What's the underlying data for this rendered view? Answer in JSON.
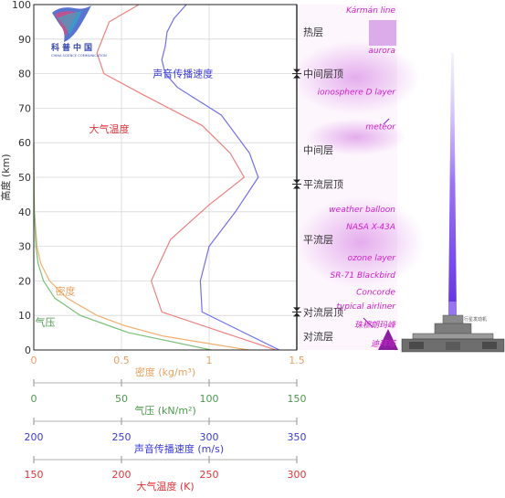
{
  "chart_data": {
    "type": "line",
    "y_axis": {
      "label": "高度 (km)",
      "ticks": [
        "0",
        "10",
        "20",
        "30",
        "40",
        "50",
        "60",
        "70",
        "80",
        "90",
        "100"
      ],
      "ylim": [
        0,
        100
      ]
    },
    "x_axes": [
      {
        "key": "density",
        "label": "密度 (kg/m³)",
        "ticks": [
          "0",
          "0.5",
          "1",
          "1.5"
        ],
        "xlim": [
          0,
          1.5
        ],
        "color": "#E8A060"
      },
      {
        "key": "pressure",
        "label": "气压 (kN/m²)",
        "ticks": [
          "0",
          "50",
          "100",
          "150"
        ],
        "xlim": [
          0,
          150
        ],
        "color": "#4C9A4C"
      },
      {
        "key": "sound_speed",
        "label": "声音传播速度 (m/s)",
        "ticks": [
          "200",
          "250",
          "300",
          "350"
        ],
        "xlim": [
          200,
          350
        ],
        "color": "#3A3AD8"
      },
      {
        "key": "temperature",
        "label": "大气温度 (K)",
        "ticks": [
          "150",
          "200",
          "250",
          "300"
        ],
        "xlim": [
          150,
          300
        ],
        "color": "#E0353A"
      }
    ],
    "series": [
      {
        "name": "大气温度",
        "axis": "temperature",
        "color": "#F08080",
        "points": [
          [
            288,
            0
          ],
          [
            223,
            11
          ],
          [
            217,
            20
          ],
          [
            228,
            32
          ],
          [
            250,
            42
          ],
          [
            270,
            50
          ],
          [
            262,
            57
          ],
          [
            246,
            65
          ],
          [
            212,
            74
          ],
          [
            190,
            80
          ],
          [
            186,
            86
          ],
          [
            193,
            95
          ],
          [
            210,
            100
          ]
        ]
      },
      {
        "name": "声音传播速度",
        "axis": "sound_speed",
        "color": "#7070F0",
        "points": [
          [
            340,
            0
          ],
          [
            296,
            11
          ],
          [
            295,
            20
          ],
          [
            300,
            30
          ],
          [
            315,
            40
          ],
          [
            328,
            50
          ],
          [
            323,
            57
          ],
          [
            307,
            68
          ],
          [
            282,
            76
          ],
          [
            275,
            80
          ],
          [
            273,
            84
          ],
          [
            275,
            88
          ],
          [
            276,
            92
          ],
          [
            280,
            96
          ],
          [
            287,
            100
          ]
        ]
      },
      {
        "name": "密度",
        "axis": "density",
        "color": "#F0B070",
        "points": [
          [
            1.225,
            0
          ],
          [
            0.74,
            4
          ],
          [
            0.52,
            7
          ],
          [
            0.36,
            10
          ],
          [
            0.19,
            15
          ],
          [
            0.09,
            20
          ],
          [
            0.04,
            25
          ],
          [
            0.018,
            30
          ],
          [
            0.004,
            40
          ],
          [
            0.001,
            50
          ],
          [
            0,
            60
          ]
        ]
      },
      {
        "name": "气压",
        "axis": "pressure",
        "color": "#7ABF7A",
        "points": [
          [
            101.3,
            0
          ],
          [
            54,
            5
          ],
          [
            26.5,
            10
          ],
          [
            12,
            15
          ],
          [
            5.5,
            20
          ],
          [
            2.5,
            25
          ],
          [
            1.2,
            30
          ],
          [
            0.3,
            40
          ],
          [
            0.08,
            50
          ],
          [
            0,
            60
          ]
        ]
      }
    ],
    "layer_annotations": [
      {
        "label": "热层",
        "altitude": 92
      },
      {
        "label": "中间层顶",
        "altitude": 80,
        "boundary": true
      },
      {
        "label": "中间层",
        "altitude": 58
      },
      {
        "label": "平流层顶",
        "altitude": 48,
        "boundary": true
      },
      {
        "label": "平流层",
        "altitude": 32
      },
      {
        "label": "对流层顶",
        "altitude": 11,
        "boundary": true
      },
      {
        "label": "对流层",
        "altitude": 4
      }
    ],
    "altitude_markers": [
      {
        "label": "Kármán line",
        "altitude": 100
      },
      {
        "label": "aurora",
        "altitude": 87
      },
      {
        "label": "ionosphere D layer",
        "altitude": 75
      },
      {
        "label": "meteor",
        "altitude": 65
      },
      {
        "label": "weather balloon",
        "altitude": 41
      },
      {
        "label": "NASA X-43A",
        "altitude": 36
      },
      {
        "label": "ozone layer",
        "altitude": 27
      },
      {
        "label": "SR-71 Blackbird",
        "altitude": 22
      },
      {
        "label": "Concorde",
        "altitude": 17
      },
      {
        "label": "typical airliner",
        "altitude": 13
      },
      {
        "label": "珠穆朗玛峰",
        "altitude": 7.5
      },
      {
        "label": "迪拜塔",
        "altitude": 1
      }
    ],
    "curve_labels": [
      {
        "text": "声音传播速度",
        "series": "声音传播速度"
      },
      {
        "text": "大气温度",
        "series": "大气温度"
      },
      {
        "text": "密度",
        "series": "密度"
      },
      {
        "text": "气压",
        "series": "气压"
      }
    ],
    "grid": true
  },
  "logo": {
    "chars": "科普中国",
    "subtitle": "CHINA SCIENCE COMMUNICATION"
  },
  "rocket_label": "行星发动机",
  "colors": {
    "magenta": "#CC22CC",
    "purple_beam": "#7744EE",
    "grid": "#d8d8d8"
  }
}
